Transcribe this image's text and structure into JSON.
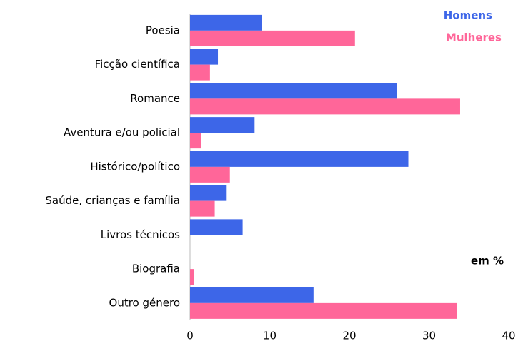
{
  "chart_data": {
    "type": "barh",
    "categories": [
      "Poesia",
      "Ficção científica",
      "Romance",
      "Aventura e/ou policial",
      "Histórico/político",
      "Saúde, crianças e família",
      "Livros técnicos",
      "Biografia",
      "Outro género"
    ],
    "series": [
      {
        "name": "Homens",
        "color": "#3d66e8",
        "values": [
          9.0,
          3.5,
          26.0,
          8.1,
          27.4,
          4.6,
          6.6,
          0,
          15.5
        ]
      },
      {
        "name": "Mulheres",
        "color": "#ff6699",
        "values": [
          20.7,
          2.5,
          33.9,
          1.4,
          5.0,
          3.1,
          0,
          0.5,
          33.5
        ]
      }
    ],
    "xlim": [
      0,
      40
    ],
    "xticks": [
      0,
      10,
      20,
      30,
      40
    ],
    "annotation": "em %",
    "legend": "upper right"
  }
}
